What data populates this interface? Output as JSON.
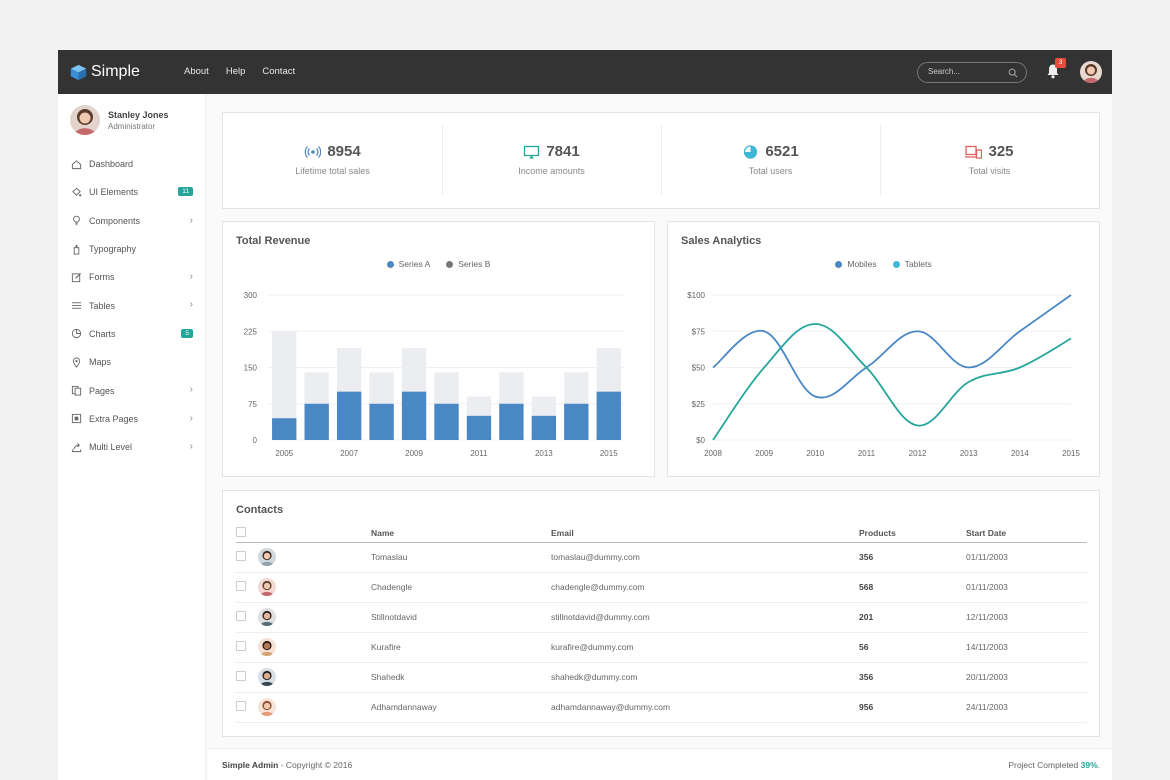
{
  "brand": {
    "name": "Simple",
    "color": "#4a9fe0"
  },
  "nav": [
    "About",
    "Help",
    "Contact"
  ],
  "search": {
    "placeholder": "Search..."
  },
  "notifications": {
    "count": "3"
  },
  "profile": {
    "name": "Stanley Jones",
    "role": "Administrator"
  },
  "sidebar": {
    "items": [
      {
        "label": "Dashboard",
        "icon": "home-icon",
        "badge": "",
        "chevron": false
      },
      {
        "label": "UI Elements",
        "icon": "paint-bucket-icon",
        "badge": "11",
        "chevron": false
      },
      {
        "label": "Components",
        "icon": "lightbulb-icon",
        "badge": "",
        "chevron": true
      },
      {
        "label": "Typography",
        "icon": "paint-brush-icon",
        "badge": "",
        "chevron": false
      },
      {
        "label": "Forms",
        "icon": "edit-icon",
        "badge": "",
        "chevron": true
      },
      {
        "label": "Tables",
        "icon": "list-icon",
        "badge": "",
        "chevron": true
      },
      {
        "label": "Charts",
        "icon": "pie-chart-icon",
        "badge": "5",
        "chevron": false
      },
      {
        "label": "Maps",
        "icon": "map-pin-icon",
        "badge": "",
        "chevron": false
      },
      {
        "label": "Pages",
        "icon": "pages-icon",
        "badge": "",
        "chevron": true
      },
      {
        "label": "Extra Pages",
        "icon": "extra-pages-icon",
        "badge": "",
        "chevron": true
      },
      {
        "label": "Multi Level",
        "icon": "share-icon",
        "badge": "",
        "chevron": true
      }
    ]
  },
  "stats": [
    {
      "value": "8954",
      "label": "Lifetime total sales",
      "icon": "broadcast-icon",
      "color": "#4a87c5"
    },
    {
      "value": "7841",
      "label": "Income amounts",
      "icon": "monitor-icon",
      "color": "#26a69a"
    },
    {
      "value": "6521",
      "label": "Total users",
      "icon": "pie-icon",
      "color": "#3fb7d5"
    },
    {
      "value": "325",
      "label": "Total visits",
      "icon": "devices-icon",
      "color": "#e06060"
    }
  ],
  "revenue": {
    "title": "Total Revenue",
    "chart_data": {
      "type": "bar",
      "x": [
        "2005",
        "2006",
        "2007",
        "2008",
        "2009",
        "2010",
        "2011",
        "2012",
        "2013",
        "2014",
        "2015"
      ],
      "tick_labels": [
        "2005",
        "",
        "2007",
        "",
        "2009",
        "",
        "2011",
        "",
        "2013",
        "",
        "2015"
      ],
      "series": [
        {
          "name": "Series A",
          "values": [
            45,
            75,
            100,
            75,
            100,
            75,
            50,
            75,
            50,
            75,
            100
          ],
          "color": "#4a87c5"
        },
        {
          "name": "Series B",
          "values": [
            225,
            140,
            190,
            140,
            190,
            140,
            90,
            140,
            90,
            140,
            190
          ],
          "color": "#ebedf0"
        }
      ],
      "overlap": true,
      "ylim": [
        0,
        300
      ],
      "yticks": [
        0,
        75,
        150,
        225,
        300
      ],
      "legend_placement": "top-center",
      "legend_colors": [
        "#4a87c5",
        "#777777"
      ]
    }
  },
  "sales": {
    "title": "Sales Analytics",
    "chart_data": {
      "type": "line",
      "x": [
        "2008",
        "2009",
        "2010",
        "2011",
        "2012",
        "2013",
        "2014",
        "2015"
      ],
      "series": [
        {
          "name": "Mobiles",
          "values": [
            50,
            75,
            30,
            50,
            75,
            50,
            75,
            100
          ],
          "color": "#4a87c5"
        },
        {
          "name": "Tablets",
          "values": [
            0,
            50,
            80,
            50,
            10,
            40,
            50,
            70
          ],
          "color": "#26a69a"
        }
      ],
      "ylim": [
        0,
        100
      ],
      "yticks": [
        "$0",
        "$25",
        "$50",
        "$75",
        "$100"
      ],
      "legend_placement": "top-center",
      "legend_colors": [
        "#4a87c5",
        "#3fb7d5"
      ]
    }
  },
  "contacts": {
    "title": "Contacts",
    "columns": {
      "name": "Name",
      "email": "Email",
      "products": "Products",
      "start": "Start Date"
    },
    "rows": [
      {
        "name": "Tomaslau",
        "email": "tomaslau@dummy.com",
        "products": "356",
        "start": "01/11/2003"
      },
      {
        "name": "Chadengle",
        "email": "chadengle@dummy.com",
        "products": "568",
        "start": "01/11/2003"
      },
      {
        "name": "Stillnotdavid",
        "email": "stillnotdavid@dummy.com",
        "products": "201",
        "start": "12/11/2003"
      },
      {
        "name": "Kurafire",
        "email": "kurafire@dummy.com",
        "products": "56",
        "start": "14/11/2003"
      },
      {
        "name": "Shahedk",
        "email": "shahedk@dummy.com",
        "products": "356",
        "start": "20/11/2003"
      },
      {
        "name": "Adhamdannaway",
        "email": "adhamdannaway@dummy.com",
        "products": "956",
        "start": "24/11/2003"
      }
    ]
  },
  "footer": {
    "brand": "Simple Admin",
    "copyright": " - Copyright © 2016",
    "progress_label": "Project Completed ",
    "progress_value": "39%",
    "progress_suffix": "."
  }
}
